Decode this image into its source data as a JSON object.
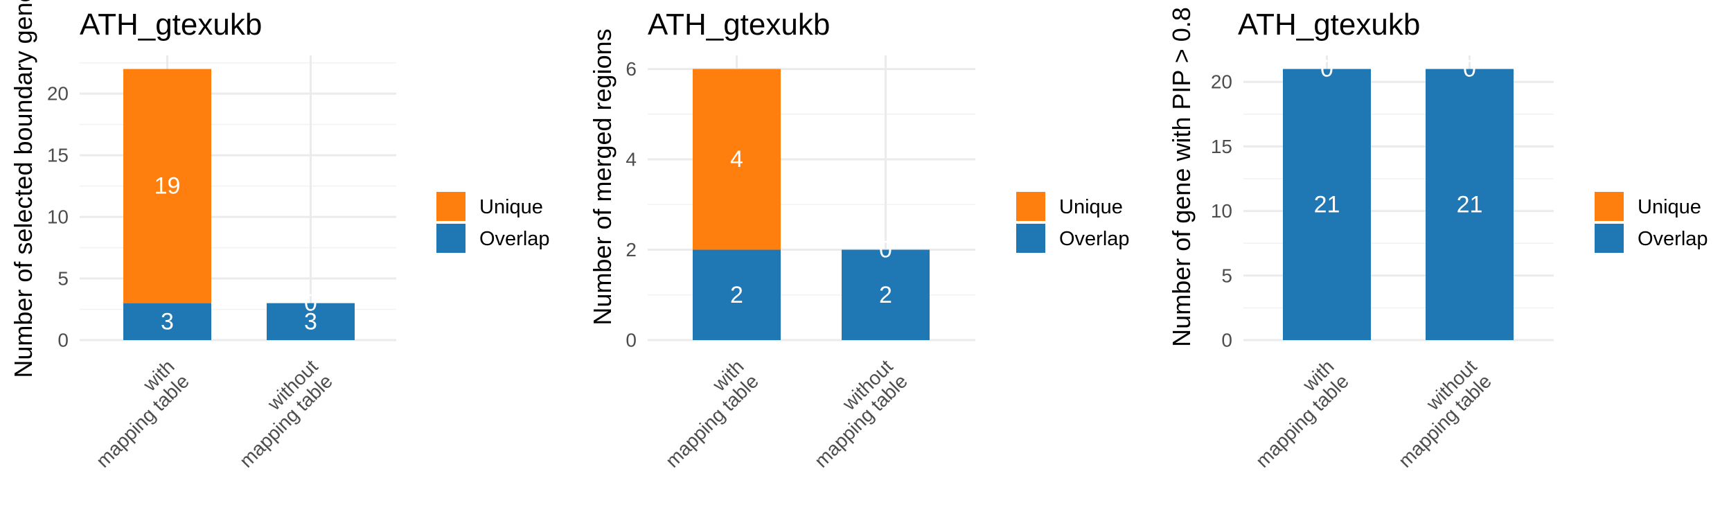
{
  "colors": {
    "Unique": "#ff7f0e",
    "Overlap": "#1f77b4"
  },
  "chart_data": [
    {
      "type": "bar",
      "stacked": true,
      "title": "ATH_gtexukb",
      "xlabel": "",
      "ylabel": "Number of selected boundary genes",
      "categories": [
        [
          "with",
          "mapping table"
        ],
        [
          "without",
          "mapping table"
        ]
      ],
      "series": [
        {
          "name": "Overlap",
          "values": [
            3,
            3
          ]
        },
        {
          "name": "Unique",
          "values": [
            19,
            0
          ]
        }
      ],
      "ylim": [
        0,
        23.1
      ],
      "yticks": [
        0,
        5,
        10,
        15,
        20
      ],
      "legend": {
        "position": "right",
        "entries": [
          "Unique",
          "Overlap"
        ]
      },
      "grid": true
    },
    {
      "type": "bar",
      "stacked": true,
      "title": "ATH_gtexukb",
      "xlabel": "",
      "ylabel": "Number of merged regions",
      "categories": [
        [
          "with",
          "mapping table"
        ],
        [
          "without",
          "mapping table"
        ]
      ],
      "series": [
        {
          "name": "Overlap",
          "values": [
            2,
            2
          ]
        },
        {
          "name": "Unique",
          "values": [
            4,
            0
          ]
        }
      ],
      "ylim": [
        0,
        6.3
      ],
      "yticks": [
        0,
        2,
        4,
        6
      ],
      "legend": {
        "position": "right",
        "entries": [
          "Unique",
          "Overlap"
        ]
      },
      "grid": true
    },
    {
      "type": "bar",
      "stacked": true,
      "title": "ATH_gtexukb",
      "xlabel": "",
      "ylabel": "Number of gene with PIP > 0.8",
      "categories": [
        [
          "with",
          "mapping table"
        ],
        [
          "without",
          "mapping table"
        ]
      ],
      "series": [
        {
          "name": "Overlap",
          "values": [
            21,
            21
          ]
        },
        {
          "name": "Unique",
          "values": [
            0,
            0
          ]
        }
      ],
      "ylim": [
        0,
        22.05
      ],
      "yticks": [
        0,
        5,
        10,
        15,
        20
      ],
      "legend": {
        "position": "right",
        "entries": [
          "Unique",
          "Overlap"
        ]
      },
      "grid": true
    }
  ]
}
